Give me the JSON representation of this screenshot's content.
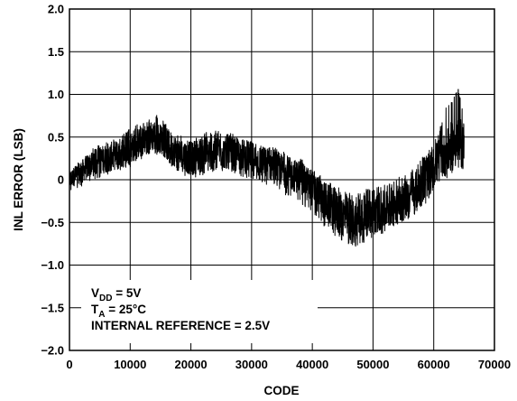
{
  "chart_data": {
    "type": "line",
    "xlabel": "CODE",
    "ylabel": "INL ERROR (LSB)",
    "xlim": [
      0,
      70000
    ],
    "ylim": [
      -2.0,
      2.0
    ],
    "x_ticks": [
      0,
      10000,
      20000,
      30000,
      40000,
      50000,
      60000,
      70000
    ],
    "x_tick_labels": [
      "0",
      "10000",
      "20000",
      "30000",
      "40000",
      "50000",
      "60000",
      "70000"
    ],
    "y_ticks": [
      2.0,
      1.5,
      1.0,
      0.5,
      0,
      -0.5,
      -1.0,
      -1.5,
      -2.0
    ],
    "y_tick_labels": [
      "2.0",
      "1.5",
      "1.0",
      "0.5",
      "0",
      "−0.5",
      "−1.0",
      "−1.5",
      "−2.0"
    ],
    "grid": true,
    "series_color": "#000000",
    "annotations": {
      "vdd_main": "V",
      "vdd_sub": "DD",
      "vdd_value": " = 5V",
      "ta_main": "T",
      "ta_sub": "A",
      "ta_value": " = 25°C",
      "ref": "INTERNAL REFERENCE = 2.5V"
    },
    "series": [
      {
        "x": [
          0,
          2000,
          4000,
          6000,
          8000,
          10000,
          12000,
          13000,
          14000,
          15000,
          16000,
          18000,
          20000,
          22000,
          24000,
          26000,
          28000,
          30000,
          32000,
          34000,
          36000,
          38000,
          40000,
          42000,
          44000,
          46000,
          47000,
          48000,
          50000,
          52000,
          54000,
          56000,
          58000,
          60000,
          61000,
          62000,
          63000,
          64000,
          65000
        ],
        "center": [
          0.0,
          0.1,
          0.2,
          0.25,
          0.3,
          0.38,
          0.45,
          0.5,
          0.52,
          0.48,
          0.42,
          0.3,
          0.25,
          0.3,
          0.33,
          0.32,
          0.3,
          0.25,
          0.2,
          0.15,
          0.08,
          0.02,
          -0.1,
          -0.25,
          -0.38,
          -0.45,
          -0.5,
          -0.45,
          -0.4,
          -0.35,
          -0.28,
          -0.2,
          -0.05,
          0.15,
          0.25,
          0.3,
          0.4,
          0.45,
          0.4
        ],
        "min": [
          -0.15,
          -0.08,
          0.0,
          0.05,
          0.1,
          0.15,
          0.25,
          0.3,
          0.3,
          0.28,
          0.2,
          0.08,
          0.02,
          0.05,
          0.1,
          0.1,
          0.05,
          0.0,
          -0.05,
          -0.1,
          -0.2,
          -0.28,
          -0.38,
          -0.55,
          -0.68,
          -0.78,
          -0.82,
          -0.75,
          -0.68,
          -0.62,
          -0.55,
          -0.45,
          -0.35,
          -0.15,
          -0.05,
          0.0,
          0.05,
          0.1,
          0.05
        ],
        "max": [
          0.12,
          0.25,
          0.38,
          0.45,
          0.5,
          0.6,
          0.68,
          0.72,
          0.78,
          0.72,
          0.65,
          0.52,
          0.48,
          0.55,
          0.58,
          0.55,
          0.52,
          0.48,
          0.42,
          0.38,
          0.3,
          0.25,
          0.15,
          0.02,
          -0.08,
          -0.15,
          -0.18,
          -0.12,
          -0.1,
          -0.05,
          0.02,
          0.08,
          0.25,
          0.42,
          0.6,
          0.85,
          0.95,
          1.08,
          0.78
        ]
      }
    ]
  }
}
